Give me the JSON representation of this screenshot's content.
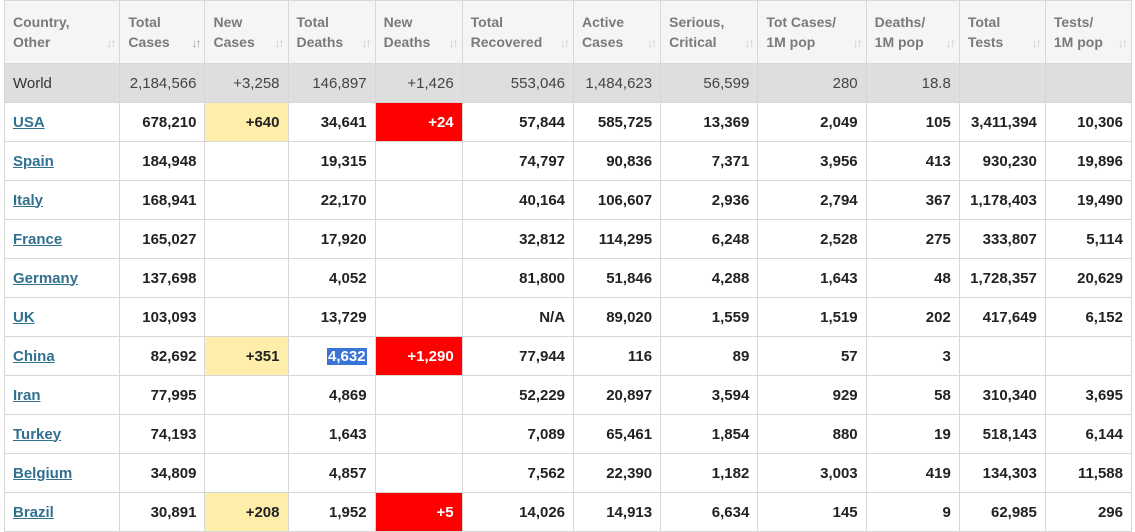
{
  "headers": [
    {
      "line1": "Country,",
      "line2": "Other"
    },
    {
      "line1": "Total",
      "line2": "Cases"
    },
    {
      "line1": "New",
      "line2": "Cases"
    },
    {
      "line1": "Total",
      "line2": "Deaths"
    },
    {
      "line1": "New",
      "line2": "Deaths"
    },
    {
      "line1": "Total",
      "line2": "Recovered"
    },
    {
      "line1": "Active",
      "line2": "Cases"
    },
    {
      "line1": "Serious,",
      "line2": "Critical"
    },
    {
      "line1": "Tot Cases/",
      "line2": "1M pop"
    },
    {
      "line1": "Deaths/",
      "line2": "1M pop"
    },
    {
      "line1": "Total",
      "line2": "Tests"
    },
    {
      "line1": "Tests/",
      "line2": "1M pop"
    }
  ],
  "sort_icon": "sort-arrows-icon",
  "world": [
    "World",
    "2,184,566",
    "+3,258",
    "146,897",
    "+1,426",
    "553,046",
    "1,484,623",
    "56,599",
    "280",
    "18.8",
    "",
    ""
  ],
  "rows": [
    [
      "USA",
      "678,210",
      "+640",
      "34,641",
      "+24",
      "57,844",
      "585,725",
      "13,369",
      "2,049",
      "105",
      "3,411,394",
      "10,306"
    ],
    [
      "Spain",
      "184,948",
      "",
      "19,315",
      "",
      "74,797",
      "90,836",
      "7,371",
      "3,956",
      "413",
      "930,230",
      "19,896"
    ],
    [
      "Italy",
      "168,941",
      "",
      "22,170",
      "",
      "40,164",
      "106,607",
      "2,936",
      "2,794",
      "367",
      "1,178,403",
      "19,490"
    ],
    [
      "France",
      "165,027",
      "",
      "17,920",
      "",
      "32,812",
      "114,295",
      "6,248",
      "2,528",
      "275",
      "333,807",
      "5,114"
    ],
    [
      "Germany",
      "137,698",
      "",
      "4,052",
      "",
      "81,800",
      "51,846",
      "4,288",
      "1,643",
      "48",
      "1,728,357",
      "20,629"
    ],
    [
      "UK",
      "103,093",
      "",
      "13,729",
      "",
      "N/A",
      "89,020",
      "1,559",
      "1,519",
      "202",
      "417,649",
      "6,152"
    ],
    [
      "China",
      "82,692",
      "+351",
      "4,632",
      "+1,290",
      "77,944",
      "116",
      "89",
      "57",
      "3",
      "",
      ""
    ],
    [
      "Iran",
      "77,995",
      "",
      "4,869",
      "",
      "52,229",
      "20,897",
      "3,594",
      "929",
      "58",
      "310,340",
      "3,695"
    ],
    [
      "Turkey",
      "74,193",
      "",
      "1,643",
      "",
      "7,089",
      "65,461",
      "1,854",
      "880",
      "19",
      "518,143",
      "6,144"
    ],
    [
      "Belgium",
      "34,809",
      "",
      "4,857",
      "",
      "7,562",
      "22,390",
      "1,182",
      "3,003",
      "419",
      "134,303",
      "11,588"
    ],
    [
      "Brazil",
      "30,891",
      "+208",
      "1,952",
      "+5",
      "14,026",
      "14,913",
      "6,634",
      "145",
      "9",
      "62,985",
      "296"
    ]
  ],
  "colors": {
    "new_cases_highlight": "#ffeeaa",
    "new_deaths_highlight": "#ff0000",
    "link": "#31708f",
    "world_row_bg": "#dedede",
    "header_bg": "#f5f5f5",
    "text_selection": "#3875d7"
  }
}
